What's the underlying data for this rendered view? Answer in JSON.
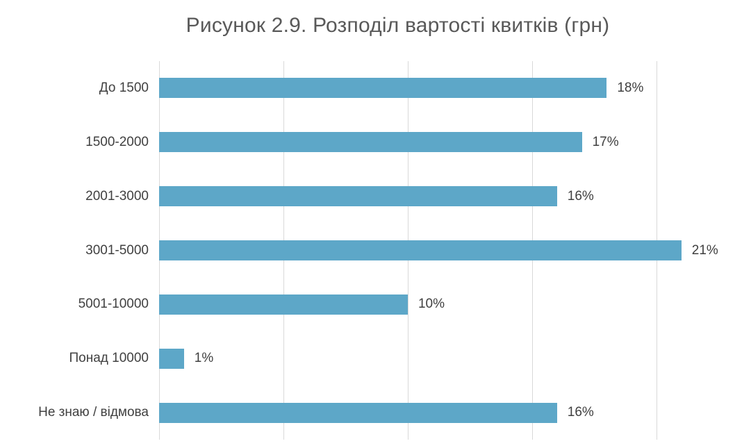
{
  "title": "Рисунок 2.9. Розподіл вартості квитків (грн)",
  "chart_data": {
    "type": "bar",
    "orientation": "horizontal",
    "title": "Рисунок 2.9. Розподіл вартості квитків (грн)",
    "categories": [
      "До 1500",
      "1500-2000",
      "2001-3000",
      "3001-5000",
      "5001-10000",
      "Понад 10000",
      "Не знаю / відмова"
    ],
    "values": [
      18,
      17,
      16,
      21,
      10,
      1,
      16
    ],
    "value_labels": [
      "18%",
      "17%",
      "16%",
      "21%",
      "10%",
      "1%",
      "16%"
    ],
    "xlabel": "",
    "ylabel": "",
    "xlim": [
      0,
      23.8
    ],
    "gridline_interval": 5,
    "grid": true,
    "legend": false,
    "axis_tick_labels_visible": false,
    "colors": {
      "bar": "#5da7c8",
      "gridline": "#d9d9d9",
      "title": "#595959",
      "category_label": "#404040",
      "value_label": "#3f3f3f"
    }
  }
}
